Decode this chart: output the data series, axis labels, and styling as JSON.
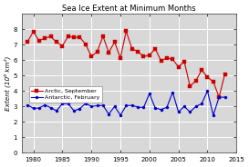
{
  "title": "Sea Ice Extent at Minimum Months",
  "ylabel": "Extent (10⁶ km²)",
  "xlim": [
    1978,
    2015
  ],
  "ylim": [
    0,
    9
  ],
  "yticks": [
    0,
    1,
    2,
    3,
    4,
    5,
    6,
    7,
    8
  ],
  "xticks": [
    1980,
    1985,
    1990,
    1995,
    2000,
    2005,
    2010,
    2015
  ],
  "arctic_years": [
    1979,
    1980,
    1981,
    1982,
    1983,
    1984,
    1985,
    1986,
    1987,
    1988,
    1989,
    1990,
    1991,
    1992,
    1993,
    1994,
    1995,
    1996,
    1997,
    1998,
    1999,
    2000,
    2001,
    2002,
    2003,
    2004,
    2005,
    2006,
    2007,
    2008,
    2009,
    2010,
    2011,
    2012,
    2013
  ],
  "arctic_values": [
    7.2,
    7.85,
    7.25,
    7.45,
    7.52,
    7.17,
    6.93,
    7.54,
    7.48,
    7.49,
    7.04,
    6.24,
    6.55,
    7.55,
    6.5,
    7.18,
    6.13,
    7.88,
    6.74,
    6.56,
    6.24,
    6.32,
    6.75,
    5.96,
    6.15,
    6.05,
    5.57,
    5.92,
    4.3,
    4.67,
    5.36,
    4.9,
    4.61,
    3.61,
    5.1
  ],
  "antarctic_years": [
    1979,
    1980,
    1981,
    1982,
    1983,
    1984,
    1985,
    1986,
    1987,
    1988,
    1989,
    1990,
    1991,
    1992,
    1993,
    1994,
    1995,
    1996,
    1997,
    1998,
    1999,
    2000,
    2001,
    2002,
    2003,
    2004,
    2005,
    2006,
    2007,
    2008,
    2009,
    2010,
    2011,
    2012,
    2013
  ],
  "antarctic_values": [
    3.1,
    2.88,
    2.9,
    3.1,
    2.92,
    2.72,
    3.18,
    3.18,
    2.72,
    2.85,
    3.2,
    3.0,
    3.05,
    3.07,
    2.5,
    3.0,
    2.44,
    3.05,
    3.07,
    2.96,
    2.93,
    3.83,
    2.9,
    2.8,
    2.94,
    3.92,
    2.65,
    3.0,
    2.64,
    3.0,
    3.18,
    4.0,
    2.43,
    3.6,
    3.6
  ],
  "arctic_color": "#cc0000",
  "antarctic_color": "#0000cc",
  "arctic_label": "Arctic, September",
  "antarctic_label": "Antarctic, February",
  "plot_bg_color": "#d8d8d8",
  "fig_bg_color": "#ffffff",
  "grid_color": "#ffffff",
  "title_fontsize": 6.0,
  "axis_fontsize": 5.2,
  "tick_fontsize": 5.0,
  "legend_fontsize": 4.5,
  "linewidth": 0.8,
  "markersize": 2.2
}
